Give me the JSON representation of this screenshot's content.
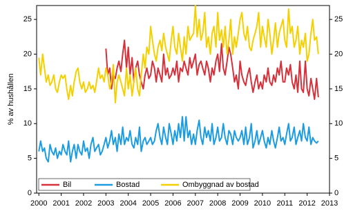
{
  "chart_data": {
    "type": "line",
    "y_label": "% av hushållen",
    "x": [
      2000,
      2000.08,
      2000.17,
      2000.25,
      2000.33,
      2000.42,
      2000.5,
      2000.58,
      2000.67,
      2000.75,
      2000.83,
      2000.92,
      2001,
      2001.08,
      2001.17,
      2001.25,
      2001.33,
      2001.42,
      2001.5,
      2001.58,
      2001.67,
      2001.75,
      2001.83,
      2001.92,
      2002,
      2002.08,
      2002.17,
      2002.25,
      2002.33,
      2002.42,
      2002.5,
      2002.58,
      2002.67,
      2002.75,
      2002.83,
      2002.92,
      2003,
      2003.08,
      2003.17,
      2003.25,
      2003.33,
      2003.42,
      2003.5,
      2003.58,
      2003.67,
      2003.75,
      2003.83,
      2003.92,
      2004,
      2004.08,
      2004.17,
      2004.25,
      2004.33,
      2004.42,
      2004.5,
      2004.58,
      2004.67,
      2004.75,
      2004.83,
      2004.92,
      2005,
      2005.08,
      2005.17,
      2005.25,
      2005.33,
      2005.42,
      2005.5,
      2005.58,
      2005.67,
      2005.75,
      2005.83,
      2005.92,
      2006,
      2006.08,
      2006.17,
      2006.25,
      2006.33,
      2006.42,
      2006.5,
      2006.58,
      2006.67,
      2006.75,
      2006.83,
      2006.92,
      2007,
      2007.08,
      2007.17,
      2007.25,
      2007.33,
      2007.42,
      2007.5,
      2007.58,
      2007.67,
      2007.75,
      2007.83,
      2007.92,
      2008,
      2008.08,
      2008.17,
      2008.25,
      2008.33,
      2008.42,
      2008.5,
      2008.58,
      2008.67,
      2008.75,
      2008.83,
      2008.92,
      2009,
      2009.08,
      2009.17,
      2009.25,
      2009.33,
      2009.42,
      2009.5,
      2009.58,
      2009.67,
      2009.75,
      2009.83,
      2009.92,
      2010,
      2010.08,
      2010.17,
      2010.25,
      2010.33,
      2010.42,
      2010.5,
      2010.58,
      2010.67,
      2010.75,
      2010.83,
      2010.92,
      2011,
      2011.08,
      2011.17,
      2011.25,
      2011.33,
      2011.42,
      2011.5,
      2011.58,
      2011.67,
      2011.75,
      2011.83,
      2011.92,
      2012,
      2012.08,
      2012.17,
      2012.25,
      2012.33,
      2012.42,
      2012.5
    ],
    "series": [
      {
        "name": "Bil",
        "color": "#d6303a",
        "values": [
          null,
          null,
          null,
          null,
          null,
          null,
          null,
          null,
          null,
          null,
          null,
          null,
          null,
          null,
          null,
          null,
          null,
          null,
          null,
          null,
          null,
          null,
          null,
          null,
          null,
          null,
          null,
          null,
          null,
          null,
          null,
          null,
          null,
          null,
          null,
          null,
          20.8,
          17,
          18,
          15,
          17,
          16.5,
          18,
          19,
          17.5,
          20,
          22,
          18,
          21,
          17,
          19.5,
          16,
          18,
          19,
          17,
          16,
          15,
          17,
          18,
          16.5,
          17,
          19,
          18,
          16,
          18,
          17,
          16,
          20,
          17,
          18,
          16.5,
          17,
          18,
          17,
          19,
          16,
          18,
          17.5,
          19,
          18,
          17,
          19.5,
          18,
          19,
          20,
          17,
          18.5,
          19,
          18,
          17,
          19,
          18,
          16,
          18,
          17,
          19,
          20,
          17.5,
          21.5,
          18,
          17,
          19,
          21,
          20,
          18,
          16,
          17,
          15,
          19,
          17,
          16,
          15.5,
          17,
          18,
          16,
          14.5,
          16,
          17,
          15,
          16,
          15,
          17,
          16,
          18,
          16,
          15.5,
          17,
          16,
          18,
          17,
          19,
          16,
          16,
          18,
          17,
          18.5,
          16,
          15,
          17,
          14.5,
          19,
          15,
          14.5,
          19,
          15,
          14,
          16.5,
          15,
          13.5,
          16.5,
          13.8
        ]
      },
      {
        "name": "Bostad",
        "color": "#1b9ce2",
        "values": [
          6,
          7.5,
          6,
          6.5,
          5,
          4.5,
          7,
          6,
          5.5,
          6.5,
          5,
          6,
          5.5,
          7,
          6,
          5.5,
          7.5,
          4.5,
          6,
          7,
          5,
          7,
          6,
          5.5,
          7.5,
          6,
          6.5,
          5,
          7,
          8,
          6,
          6.5,
          7,
          5.5,
          6,
          7,
          8,
          6.5,
          7.5,
          9,
          7,
          8,
          6,
          8.5,
          7,
          9.5,
          7,
          8,
          7.5,
          9,
          7,
          6.5,
          8,
          7,
          9.5,
          6,
          7.5,
          8,
          7,
          7.5,
          8,
          7,
          7.5,
          9,
          10,
          8,
          7,
          9.5,
          8,
          7,
          10,
          8.5,
          7,
          9,
          7.5,
          10,
          8,
          11,
          7.5,
          11,
          8,
          9,
          7,
          8.5,
          7,
          9,
          10.5,
          8,
          7,
          9.5,
          8,
          9,
          7.5,
          10,
          7,
          8,
          9.5,
          7.5,
          8,
          10,
          8,
          7,
          9,
          8.5,
          7,
          9,
          8,
          7.5,
          8,
          9,
          7,
          9.5,
          7,
          8,
          10,
          6.5,
          7.5,
          9,
          7,
          8,
          9,
          7.5,
          6.5,
          8,
          7,
          9,
          7.5,
          6.5,
          8,
          9.5,
          7.5,
          8,
          7,
          8.5,
          10,
          7.5,
          8,
          9.5,
          7,
          8,
          9,
          7.5,
          10,
          8,
          7.5,
          9.5,
          7,
          8,
          7.5,
          7.2,
          7.5
        ]
      },
      {
        "name": "Ombyggnad av bostad",
        "color": "#f5d000",
        "values": [
          19.5,
          17,
          20,
          18,
          16,
          17,
          15.5,
          16,
          17,
          15,
          14.5,
          16,
          17,
          16.5,
          17,
          15,
          13.5,
          15.5,
          14,
          16,
          17.5,
          18,
          16,
          15,
          16,
          14.5,
          15,
          16,
          15,
          15.5,
          14.5,
          16,
          18,
          16.5,
          17,
          16,
          18,
          17,
          15,
          16,
          18.5,
          13,
          16,
          17,
          16,
          15,
          14,
          18,
          15,
          17,
          14,
          16,
          18,
          15,
          14,
          17,
          20,
          18,
          21,
          20,
          24,
          22,
          20,
          19,
          21,
          22,
          20.5,
          23,
          21,
          20,
          19,
          22,
          24,
          21,
          20,
          23,
          21,
          19,
          22.5,
          20,
          24,
          22,
          22.5,
          23,
          27,
          22.5,
          25,
          22,
          23,
          26,
          21,
          22.5,
          20,
          23,
          24,
          21,
          26,
          22,
          23.5,
          21,
          24,
          20,
          22,
          25,
          20,
          22.5,
          21,
          23,
          25,
          26,
          23,
          22,
          24,
          21,
          20.5,
          22,
          23,
          24,
          26,
          21,
          24,
          22.5,
          21,
          25,
          23,
          20,
          22,
          24.5,
          21,
          23,
          24,
          25,
          22,
          21,
          26.5,
          23,
          24,
          21,
          22,
          24,
          20,
          22,
          21,
          23,
          19,
          20,
          23,
          25,
          22,
          22.5,
          20
        ]
      }
    ],
    "xlim": [
      1999.9,
      2013
    ],
    "xticks": [
      2000,
      2001,
      2002,
      2003,
      2004,
      2005,
      2006,
      2007,
      2008,
      2009,
      2010,
      2011,
      2012,
      2013
    ],
    "ylim": [
      0,
      27
    ],
    "yticks": [
      0,
      5,
      10,
      15,
      20,
      25
    ],
    "legend": "lower-left"
  }
}
